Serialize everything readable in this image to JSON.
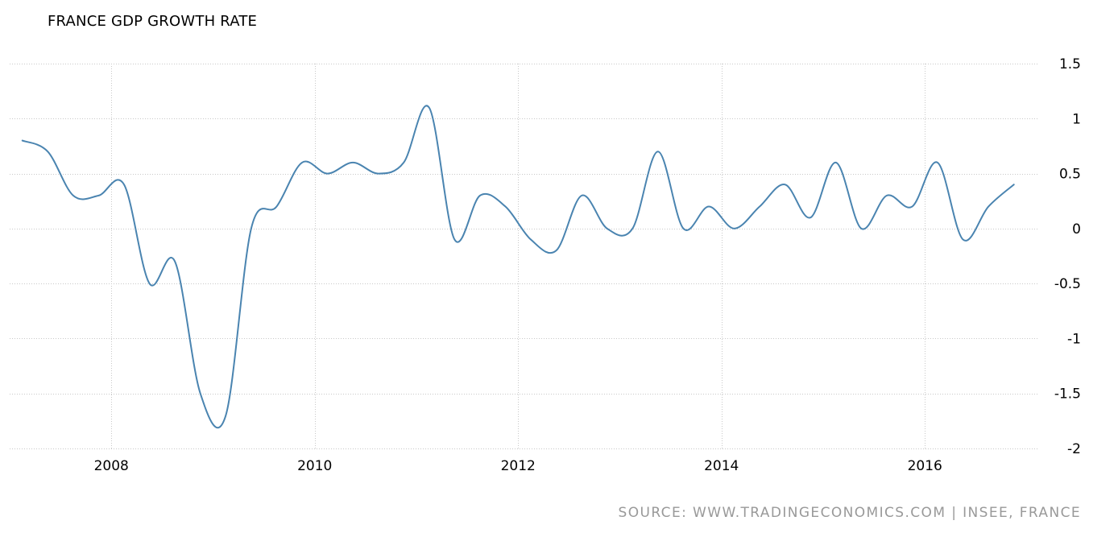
{
  "colors": {
    "series": "#4a84b0",
    "grid": "#c8c8c8",
    "text": "#000000",
    "source": "#999999"
  },
  "source": "SOURCE: WWW.TRADINGECONOMICS.COM | INSEE, FRANCE",
  "chart_data": {
    "type": "line",
    "title": "FRANCE GDP GROWTH RATE",
    "xlabel": "",
    "ylabel": "",
    "xlim": [
      2007.0,
      2017.25
    ],
    "ylim": [
      -2,
      1.5
    ],
    "y_ticks": [
      -2,
      -1.5,
      -1,
      -0.5,
      0,
      0.5,
      1,
      1.5
    ],
    "y_tick_labels": [
      "-2",
      "-1.5",
      "-1",
      "-0.5",
      "0",
      "0.5",
      "1",
      "1.5"
    ],
    "x_ticks": [
      2008,
      2010,
      2012,
      2014,
      2016
    ],
    "x_tick_labels": [
      "2008",
      "2010",
      "2012",
      "2014",
      "2016"
    ],
    "grid": true,
    "legend": "none",
    "series": [
      {
        "x": [
          2007.125,
          2007.375,
          2007.625,
          2007.875,
          2008.125,
          2008.375,
          2008.625,
          2008.875,
          2009.125,
          2009.375,
          2009.625,
          2009.875,
          2010.125,
          2010.375,
          2010.625,
          2010.875,
          2011.125,
          2011.375,
          2011.625,
          2011.875,
          2012.125,
          2012.375,
          2012.625,
          2012.875,
          2013.125,
          2013.375,
          2013.625,
          2013.875,
          2014.125,
          2014.375,
          2014.625,
          2014.875,
          2015.125,
          2015.375,
          2015.625,
          2015.875,
          2016.125,
          2016.375,
          2016.625,
          2016.875
        ],
        "values": [
          0.8,
          0.7,
          0.3,
          0.3,
          0.4,
          -0.5,
          -0.3,
          -1.5,
          -1.7,
          0.0,
          0.2,
          0.6,
          0.5,
          0.6,
          0.5,
          0.6,
          1.1,
          -0.1,
          0.3,
          0.2,
          -0.1,
          -0.2,
          0.3,
          0.0,
          0.0,
          0.7,
          0.0,
          0.2,
          0.0,
          0.2,
          0.4,
          0.1,
          0.6,
          0.0,
          0.3,
          0.2,
          0.6,
          -0.1,
          0.2,
          0.4
        ]
      }
    ]
  }
}
